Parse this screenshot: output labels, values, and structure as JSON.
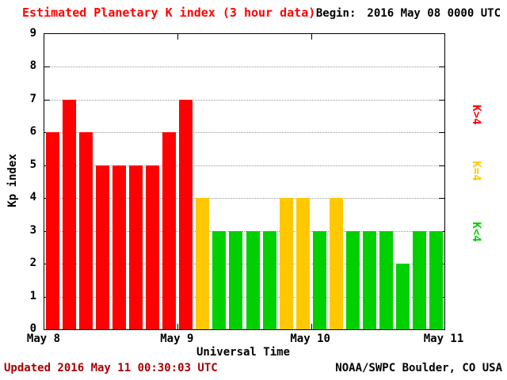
{
  "header": {
    "title": "Estimated Planetary K index (3 hour data)",
    "begin_label": "Begin:",
    "begin_value": "2016 May 08 0000 UTC"
  },
  "footer": {
    "updated": "Updated 2016 May 11 00:30:03 UTC",
    "source": "NOAA/SWPC Boulder, CO USA"
  },
  "legend": {
    "items": [
      {
        "label": "K>4",
        "color": "#ff0000"
      },
      {
        "label": "K=4",
        "color": "#ffc800"
      },
      {
        "label": "K<4",
        "color": "#00d000"
      }
    ]
  },
  "chart_data": {
    "type": "bar",
    "title": "Estimated Planetary K index (3 hour data)",
    "xlabel": "Universal Time",
    "ylabel": "Kp index",
    "ylim": [
      0,
      9
    ],
    "yticks": [
      0,
      1,
      2,
      3,
      4,
      5,
      6,
      7,
      8,
      9
    ],
    "x_tick_labels": [
      "May 8",
      "May 9",
      "May 10",
      "May 11"
    ],
    "hours_per_bar": 3,
    "begin": "2016 May 08 0000 UTC",
    "series": [
      {
        "name": "Estimated Kp",
        "values": [
          6,
          7,
          6,
          5,
          5,
          5,
          5,
          6,
          7,
          4,
          3,
          3,
          3,
          3,
          4,
          4,
          3,
          4,
          3,
          3,
          3,
          2,
          3,
          3
        ]
      }
    ],
    "color_rules": {
      "above_4": "#ff0000",
      "equal_4": "#ffc800",
      "below_4": "#00d000"
    },
    "grid": "horizontal dotted line at each integer Kp level",
    "legend_position": "right-outside"
  },
  "colors": {
    "title": "#ff0000",
    "updated": "#a80000",
    "axis_text": "#000000",
    "background": "#ffffff",
    "grid": "#999999"
  }
}
